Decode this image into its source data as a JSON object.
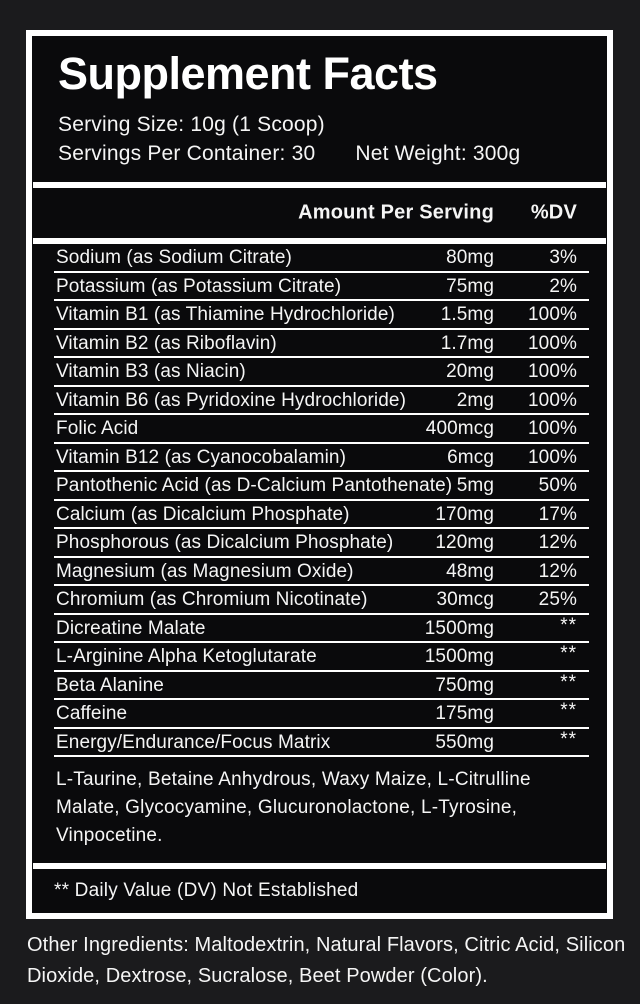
{
  "panel": {
    "title": "Supplement Facts",
    "serving": {
      "serving_size": "Serving Size: 10g (1 Scoop)",
      "servings_per_container": "Servings Per Container: 30",
      "net_weight": "Net Weight: 300g"
    },
    "header": {
      "amount_label": "Amount Per Serving",
      "dv_label": "%DV"
    },
    "table": {
      "rows": [
        {
          "label": "Sodium (as Sodium Citrate)",
          "amount": "80mg",
          "dv": "3%"
        },
        {
          "label": "Potassium (as Potassium Citrate)",
          "amount": "75mg",
          "dv": "2%"
        },
        {
          "label": "Vitamin B1 (as Thiamine Hydrochloride)",
          "amount": "1.5mg",
          "dv": "100%"
        },
        {
          "label": "Vitamin B2 (as Riboflavin)",
          "amount": "1.7mg",
          "dv": "100%"
        },
        {
          "label": "Vitamin B3 (as Niacin)",
          "amount": "20mg",
          "dv": "100%"
        },
        {
          "label": "Vitamin B6 (as Pyridoxine Hydrochloride)",
          "amount": "2mg",
          "dv": "100%"
        },
        {
          "label": "Folic Acid",
          "amount": "400mcg",
          "dv": "100%"
        },
        {
          "label": "Vitamin B12 (as Cyanocobalamin)",
          "amount": "6mcg",
          "dv": "100%"
        },
        {
          "label": "Pantothenic Acid (as D-Calcium Pantothenate)",
          "amount": "5mg",
          "dv": "50%"
        },
        {
          "label": "Calcium (as Dicalcium Phosphate)",
          "amount": "170mg",
          "dv": "17%"
        },
        {
          "label": "Phosphorous (as Dicalcium Phosphate)",
          "amount": "120mg",
          "dv": "12%"
        },
        {
          "label": "Magnesium (as Magnesium Oxide)",
          "amount": "48mg",
          "dv": "12%"
        },
        {
          "label": "Chromium (as Chromium Nicotinate)",
          "amount": "30mcg",
          "dv": "25%"
        },
        {
          "label": "Dicreatine Malate",
          "amount": "1500mg",
          "dv": "**"
        },
        {
          "label": "L-Arginine Alpha Ketoglutarate",
          "amount": "1500mg",
          "dv": "**"
        },
        {
          "label": "Beta Alanine",
          "amount": "750mg",
          "dv": "**"
        },
        {
          "label": "Caffeine",
          "amount": "175mg",
          "dv": "**"
        },
        {
          "label": "Energy/Endurance/Focus Matrix",
          "amount": "550mg",
          "dv": "**"
        }
      ],
      "blend_ingredients": "L-Taurine, Betaine Anhydrous, Waxy Maize,  L-Citrulline Malate, Glycocyamine, Glucuronolactone, L-Tyrosine, Vinpocetine."
    },
    "footnote": "** Daily Value (DV) Not Established"
  },
  "other_ingredients": "Other Ingredients: Maltodextrin, Natural Flavors, Citric Acid, Silicon Dioxide, Dextrose, Sucralose, Beet Powder (Color).",
  "colors": {
    "page_background": "#1b1b1d",
    "panel_background": "#0a0a0c",
    "border": "#ffffff",
    "text": "#f5f5f5"
  }
}
